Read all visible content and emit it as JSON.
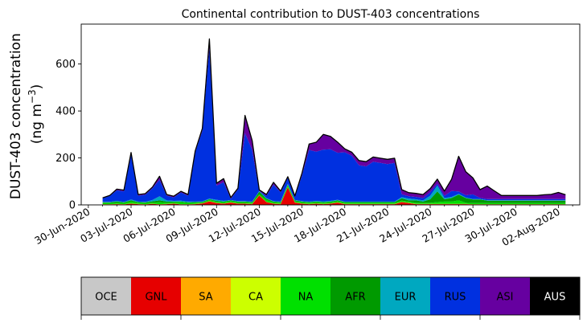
{
  "chart_data": {
    "type": "area",
    "stacked": true,
    "title": "Continental contribution to DUST-403 concentrations",
    "ylabel_line1": "DUST-403 concentration",
    "ylabel_line2": "(ng m",
    "ylabel_sup": "−3",
    "ylabel_close": ")",
    "ylim": [
      0,
      770
    ],
    "yticks": [
      0,
      200,
      400,
      600
    ],
    "xlim_day": [
      -1.5,
      33.5
    ],
    "start_date": "2020-07-01",
    "xtick_labels": [
      "30-Jun-2020",
      "03-Jul-2020",
      "06-Jul-2020",
      "09-Jul-2020",
      "12-Jul-2020",
      "15-Jul-2020",
      "18-Jul-2020",
      "21-Jul-2020",
      "24-Jul-2020",
      "27-Jul-2020",
      "30-Jul-2020",
      "02-Aug-2020"
    ],
    "xtick_days": [
      -1,
      2,
      5,
      8,
      11,
      14,
      17,
      20,
      23,
      26,
      29,
      32
    ],
    "x_days": [
      0,
      0.5,
      1,
      1.5,
      2,
      2.5,
      3,
      3.5,
      4,
      4.5,
      5,
      5.5,
      6,
      6.5,
      7,
      7.5,
      8,
      8.5,
      9,
      9.5,
      10,
      10.5,
      11,
      11.5,
      12,
      12.5,
      13,
      13.5,
      14,
      14.5,
      15,
      15.5,
      16,
      16.5,
      17,
      17.5,
      18,
      18.5,
      19,
      19.5,
      20,
      20.5,
      21,
      21.5,
      22,
      22.5,
      23,
      23.5,
      24,
      24.5,
      25,
      25.5,
      26,
      26.5,
      27,
      27.5,
      28,
      28.5,
      29,
      29.5,
      30,
      30.5,
      31,
      31.5,
      32,
      32.5
    ],
    "series": [
      {
        "name": "OCE",
        "color": "#c8c8c8",
        "values": [
          0,
          0,
          0,
          0,
          0,
          0,
          0,
          0,
          0,
          0,
          0,
          0,
          0,
          0,
          0,
          0,
          0,
          0,
          0,
          0,
          0,
          0,
          0,
          0,
          0,
          0,
          0,
          0,
          0,
          0,
          0,
          0,
          0,
          0,
          0,
          0,
          0,
          0,
          0,
          0,
          0,
          0,
          0,
          0,
          0,
          0,
          0,
          0,
          0,
          0,
          0,
          0,
          0,
          0,
          0,
          0,
          0,
          0,
          0,
          0,
          0,
          0,
          0,
          0,
          0,
          0
        ]
      },
      {
        "name": "GNL",
        "color": "#e60000",
        "values": [
          2,
          2,
          3,
          2,
          5,
          3,
          2,
          4,
          2,
          3,
          5,
          2,
          2,
          3,
          6,
          15,
          8,
          5,
          10,
          5,
          5,
          3,
          40,
          12,
          5,
          3,
          75,
          10,
          5,
          3,
          5,
          3,
          5,
          10,
          3,
          3,
          3,
          3,
          3,
          3,
          3,
          3,
          12,
          8,
          3,
          3,
          3,
          3,
          3,
          3,
          3,
          3,
          2,
          2,
          2,
          2,
          2,
          2,
          2,
          2,
          2,
          2,
          2,
          2,
          2,
          2
        ]
      },
      {
        "name": "SA",
        "color": "#ffaa00",
        "values": [
          1,
          1,
          1,
          1,
          1,
          1,
          1,
          1,
          1,
          1,
          1,
          1,
          1,
          1,
          1,
          1,
          1,
          1,
          1,
          1,
          1,
          1,
          1,
          1,
          1,
          1,
          1,
          1,
          1,
          1,
          1,
          1,
          1,
          1,
          1,
          1,
          1,
          1,
          1,
          1,
          1,
          1,
          1,
          1,
          1,
          1,
          1,
          1,
          1,
          1,
          1,
          1,
          1,
          1,
          1,
          1,
          1,
          1,
          1,
          1,
          1,
          1,
          1,
          1,
          1,
          1
        ]
      },
      {
        "name": "CA",
        "color": "#ccff00",
        "values": [
          0,
          0,
          0,
          0,
          0,
          0,
          0,
          0,
          0,
          0,
          0,
          0,
          0,
          0,
          0,
          0,
          0,
          0,
          0,
          0,
          0,
          0,
          0,
          0,
          0,
          0,
          0,
          0,
          0,
          0,
          0,
          0,
          0,
          0,
          0,
          0,
          0,
          0,
          0,
          0,
          0,
          0,
          0,
          0,
          0,
          0,
          0,
          0,
          0,
          0,
          0,
          0,
          0,
          0,
          0,
          0,
          0,
          0,
          0,
          0,
          0,
          0,
          0,
          0,
          0,
          0
        ]
      },
      {
        "name": "NA",
        "color": "#00e000",
        "values": [
          5,
          5,
          5,
          5,
          8,
          5,
          5,
          5,
          8,
          5,
          5,
          8,
          5,
          5,
          3,
          5,
          5,
          5,
          5,
          5,
          5,
          5,
          5,
          8,
          5,
          5,
          8,
          5,
          5,
          5,
          5,
          5,
          5,
          5,
          5,
          5,
          5,
          5,
          5,
          5,
          5,
          5,
          5,
          5,
          5,
          5,
          5,
          8,
          10,
          10,
          15,
          5,
          5,
          5,
          5,
          5,
          5,
          5,
          5,
          5,
          5,
          5,
          5,
          5,
          5,
          5
        ]
      },
      {
        "name": "AFR",
        "color": "#009a00",
        "values": [
          3,
          3,
          5,
          3,
          5,
          3,
          3,
          5,
          8,
          5,
          3,
          3,
          3,
          3,
          3,
          3,
          3,
          3,
          3,
          3,
          3,
          3,
          10,
          5,
          3,
          3,
          3,
          3,
          3,
          3,
          3,
          3,
          3,
          3,
          3,
          3,
          3,
          3,
          3,
          3,
          3,
          3,
          10,
          5,
          10,
          5,
          15,
          45,
          10,
          15,
          25,
          20,
          15,
          15,
          10,
          10,
          10,
          10,
          10,
          10,
          10,
          10,
          10,
          10,
          10,
          10
        ]
      },
      {
        "name": "EUR",
        "color": "#00a8c0",
        "values": [
          2,
          2,
          3,
          2,
          4,
          2,
          2,
          6,
          18,
          5,
          3,
          4,
          3,
          2,
          2,
          3,
          5,
          3,
          2,
          2,
          2,
          2,
          3,
          3,
          2,
          2,
          3,
          2,
          2,
          2,
          3,
          3,
          3,
          3,
          2,
          2,
          2,
          2,
          2,
          2,
          2,
          2,
          5,
          8,
          5,
          5,
          15,
          25,
          5,
          5,
          3,
          2,
          2,
          2,
          2,
          2,
          2,
          2,
          2,
          2,
          2,
          2,
          2,
          2,
          2,
          2
        ]
      },
      {
        "name": "RUS",
        "color": "#0030e0",
        "values": [
          15,
          25,
          45,
          45,
          195,
          25,
          30,
          50,
          70,
          20,
          15,
          35,
          25,
          210,
          300,
          640,
          60,
          80,
          5,
          50,
          290,
          220,
          0,
          10,
          70,
          40,
          25,
          12,
          110,
          220,
          210,
          220,
          220,
          200,
          210,
          195,
          155,
          150,
          170,
          165,
          160,
          165,
          12,
          10,
          10,
          10,
          15,
          8,
          10,
          25,
          10,
          10,
          20,
          5,
          5,
          5,
          5,
          5,
          5,
          5,
          5,
          5,
          5,
          5,
          5,
          5
        ]
      },
      {
        "name": "ASI",
        "color": "#6600a0",
        "values": [
          2,
          2,
          5,
          5,
          5,
          5,
          5,
          5,
          15,
          5,
          5,
          5,
          5,
          5,
          10,
          40,
          10,
          15,
          5,
          5,
          75,
          40,
          5,
          5,
          10,
          5,
          5,
          5,
          10,
          25,
          40,
          65,
          55,
          45,
          15,
          15,
          20,
          20,
          20,
          20,
          20,
          20,
          20,
          15,
          15,
          15,
          15,
          20,
          20,
          50,
          150,
          100,
          70,
          35,
          55,
          35,
          15,
          15,
          15,
          15,
          15,
          15,
          18,
          20,
          28,
          18
        ]
      },
      {
        "name": "AUS",
        "color": "#000000",
        "values": [
          0,
          0,
          0,
          0,
          0,
          0,
          0,
          0,
          0,
          0,
          0,
          0,
          0,
          0,
          0,
          0,
          0,
          0,
          0,
          0,
          0,
          0,
          0,
          0,
          0,
          0,
          0,
          0,
          0,
          0,
          0,
          0,
          0,
          0,
          0,
          0,
          0,
          0,
          0,
          0,
          0,
          0,
          0,
          0,
          0,
          0,
          0,
          0,
          0,
          0,
          0,
          0,
          0,
          0,
          0,
          0,
          0,
          0,
          0,
          0,
          0,
          0,
          0,
          0,
          0,
          0
        ]
      }
    ],
    "legend_placement": "bottom colorbar",
    "legend_text_light": [
      "AUS"
    ]
  }
}
